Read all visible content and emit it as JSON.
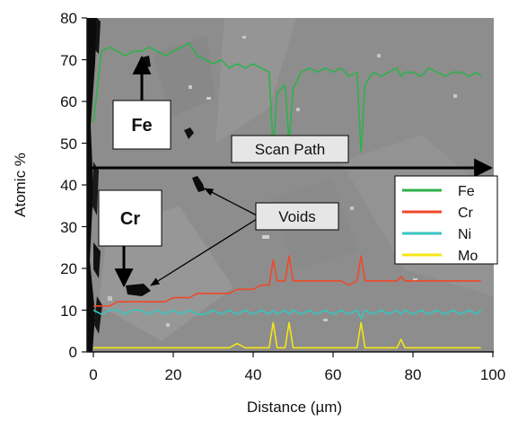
{
  "chart_data": {
    "type": "line",
    "title": "",
    "xlabel": "Distance (µm)",
    "ylabel": "Atomic %",
    "xlim": [
      0,
      100
    ],
    "ylim": [
      0,
      80
    ],
    "xticks": [
      "0",
      "20",
      "40",
      "60",
      "80",
      "100"
    ],
    "yticks": [
      "0",
      "10",
      "20",
      "30",
      "40",
      "50",
      "60",
      "70",
      "80"
    ],
    "grid": false,
    "legend_position": "right",
    "x": [
      0,
      2,
      4,
      6,
      8,
      10,
      12,
      14,
      16,
      18,
      20,
      22,
      24,
      26,
      28,
      30,
      32,
      34,
      36,
      38,
      40,
      42,
      44,
      45,
      46,
      48,
      49,
      50,
      52,
      54,
      56,
      58,
      60,
      62,
      64,
      66,
      67,
      68,
      70,
      72,
      74,
      76,
      77,
      78,
      80,
      82,
      84,
      86,
      88,
      90,
      92,
      94,
      96,
      97
    ],
    "series": [
      {
        "name": "Fe",
        "color": "#2db24a",
        "values": [
          55,
          72,
          73,
          72,
          71,
          72,
          72,
          73,
          72,
          71,
          72,
          73,
          74,
          71,
          70,
          69,
          70,
          68,
          69,
          68,
          69,
          68,
          67,
          48,
          62,
          64,
          50,
          63,
          67,
          68,
          67,
          68,
          67,
          68,
          66,
          67,
          48,
          64,
          67,
          66,
          67,
          68,
          66,
          67,
          67,
          66,
          68,
          67,
          66,
          67,
          67,
          66,
          67,
          66
        ]
      },
      {
        "name": "Cr",
        "color": "#f04828",
        "values": [
          11,
          11,
          11,
          12,
          12,
          12,
          12,
          12,
          12,
          12,
          13,
          13,
          13,
          14,
          14,
          14,
          14,
          14,
          15,
          15,
          15,
          16,
          16,
          22,
          17,
          17,
          23,
          17,
          17,
          17,
          17,
          17,
          17,
          17,
          16,
          17,
          23,
          17,
          17,
          17,
          17,
          17,
          18,
          17,
          17,
          17,
          17,
          17,
          17,
          17,
          17,
          17,
          17,
          17
        ]
      },
      {
        "name": "Ni",
        "color": "#38c6c0",
        "values": [
          10,
          9,
          10,
          10,
          9,
          10,
          10,
          9,
          10,
          9,
          10,
          9,
          10,
          9,
          9,
          10,
          9,
          10,
          9,
          10,
          9,
          10,
          9,
          10,
          9,
          10,
          9,
          10,
          9,
          10,
          9,
          10,
          9,
          10,
          9,
          10,
          8,
          10,
          9,
          10,
          9,
          10,
          9,
          10,
          9,
          10,
          9,
          10,
          9,
          10,
          9,
          10,
          9,
          10
        ]
      },
      {
        "name": "Mo",
        "color": "#f2e616",
        "values": [
          1,
          1,
          1,
          1,
          1,
          1,
          1,
          1,
          1,
          1,
          1,
          1,
          1,
          1,
          1,
          1,
          1,
          1,
          2,
          1,
          1,
          1,
          1,
          7,
          1,
          1,
          7,
          1,
          1,
          1,
          1,
          1,
          1,
          1,
          1,
          1,
          7,
          1,
          1,
          1,
          1,
          1,
          3,
          1,
          1,
          1,
          1,
          1,
          1,
          1,
          1,
          1,
          1,
          1
        ]
      }
    ],
    "annotations": [
      "Fe",
      "Cr",
      "Scan Path",
      "Voids"
    ]
  },
  "colors": {
    "background_image": "#8e8e8e",
    "grain_light": "#a2a2a2",
    "void_black": "#0a0a0a",
    "box_fill": "#ffffff",
    "label_box_fill": "#e6e6e6"
  }
}
